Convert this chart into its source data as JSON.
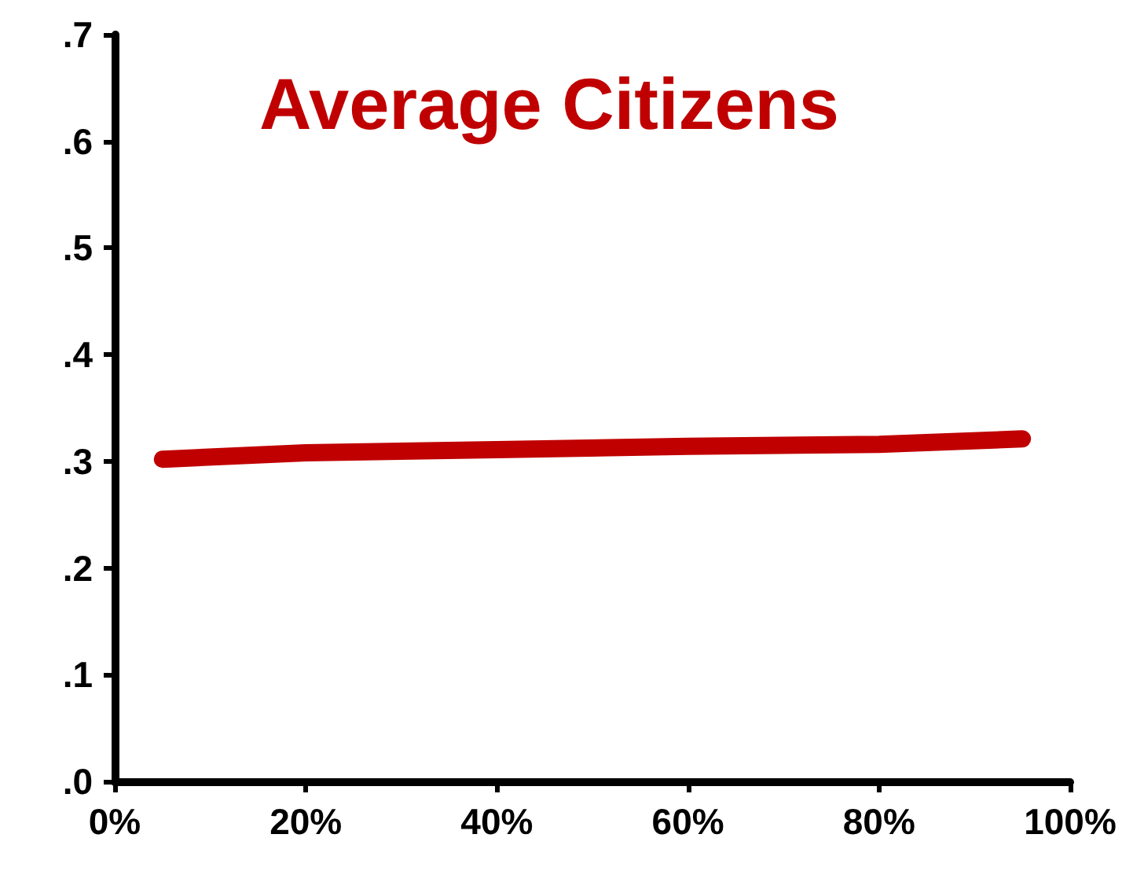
{
  "chart_data": {
    "type": "line",
    "title": "Average Citizens",
    "x": [
      5,
      20,
      40,
      60,
      80,
      95
    ],
    "series": [
      {
        "color": "#c00000",
        "values": [
          0.302,
          0.308,
          0.311,
          0.314,
          0.316,
          0.321
        ]
      }
    ],
    "xlim": [
      0,
      100
    ],
    "xticks": [
      {
        "value": 0,
        "label": "0%"
      },
      {
        "value": 20,
        "label": "20%"
      },
      {
        "value": 40,
        "label": "40%"
      },
      {
        "value": 60,
        "label": "60%"
      },
      {
        "value": 80,
        "label": "80%"
      },
      {
        "value": 100,
        "label": "100%"
      }
    ],
    "ylim": [
      0,
      0.7
    ],
    "yticks": [
      {
        "value": 0,
        "label": ".0"
      },
      {
        "value": 0.1,
        "label": ".1"
      },
      {
        "value": 0.2,
        "label": ".2"
      },
      {
        "value": 0.3,
        "label": ".3"
      },
      {
        "value": 0.4,
        "label": ".4"
      },
      {
        "value": 0.5,
        "label": ".5"
      },
      {
        "value": 0.6,
        "label": ".6"
      },
      {
        "value": 0.7,
        "label": ".7"
      }
    ],
    "grid": false,
    "line_style": "solid"
  }
}
